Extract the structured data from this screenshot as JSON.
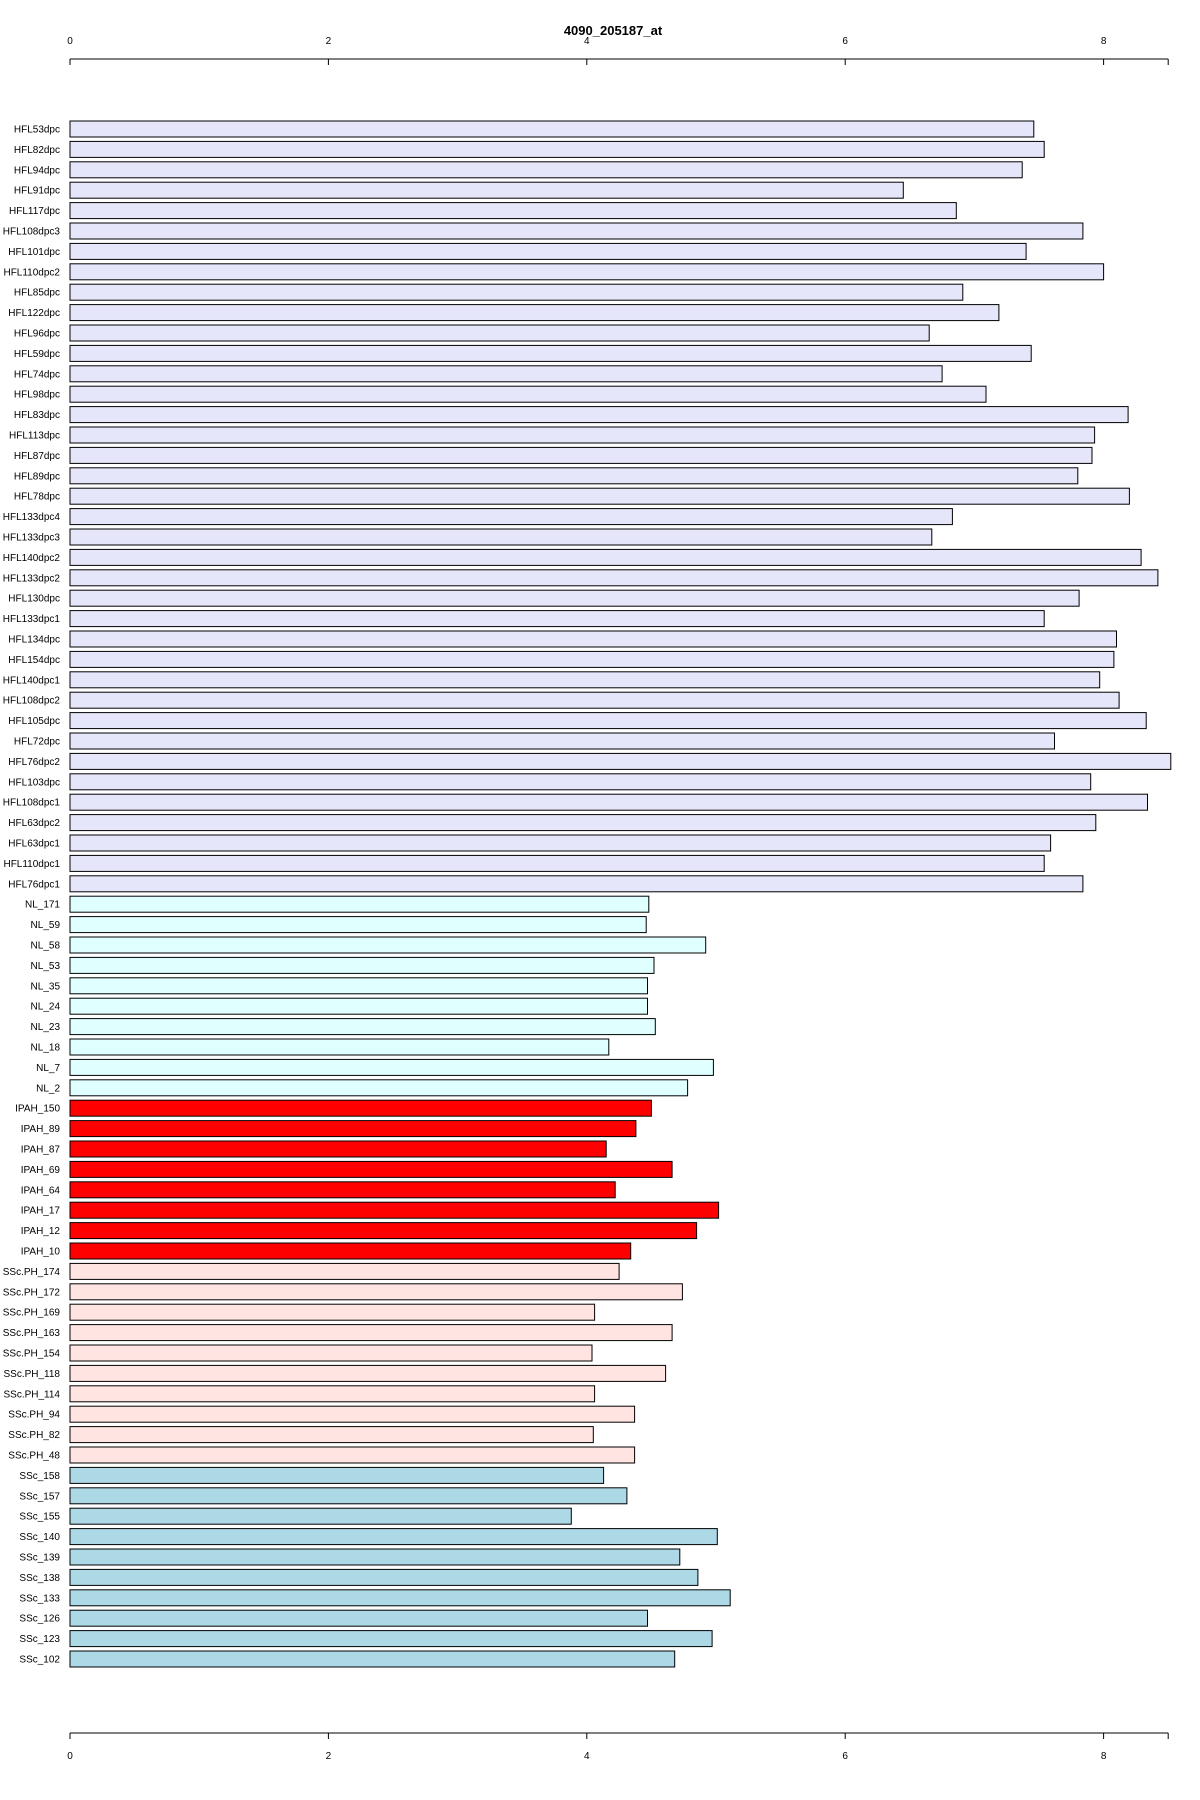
{
  "chart_data": {
    "type": "bar",
    "orientation": "horizontal",
    "title": "4090_205187_at",
    "xlabel": "",
    "ylabel": "",
    "xlim": [
      0,
      8.5
    ],
    "x_ticks": [
      0,
      2,
      4,
      6,
      8
    ],
    "axes": [
      "top",
      "bottom"
    ],
    "grid": false,
    "groups": [
      {
        "color": "#E6E6FA",
        "first": 0,
        "last": 37
      },
      {
        "color": "#E0FFFF",
        "first": 38,
        "last": 47
      },
      {
        "color": "#FF0000",
        "first": 48,
        "last": 55
      },
      {
        "color": "#FFE4E1",
        "first": 56,
        "last": 65
      },
      {
        "color": "#ADD8E6",
        "first": 66,
        "last": 75
      }
    ],
    "categories": [
      "HFL53dpc",
      "HFL82dpc",
      "HFL94dpc",
      "HFL91dpc",
      "HFL117dpc",
      "HFL108dpc3",
      "HFL101dpc",
      "HFL110dpc2",
      "HFL85dpc",
      "HFL122dpc",
      "HFL96dpc",
      "HFL59dpc",
      "HFL74dpc",
      "HFL98dpc",
      "HFL83dpc",
      "HFL113dpc",
      "HFL87dpc",
      "HFL89dpc",
      "HFL78dpc",
      "HFL133dpc4",
      "HFL133dpc3",
      "HFL140dpc2",
      "HFL133dpc2",
      "HFL130dpc",
      "HFL133dpc1",
      "HFL134dpc",
      "HFL154dpc",
      "HFL140dpc1",
      "HFL108dpc2",
      "HFL105dpc",
      "HFL72dpc",
      "HFL76dpc2",
      "HFL103dpc",
      "HFL108dpc1",
      "HFL63dpc2",
      "HFL63dpc1",
      "HFL110dpc1",
      "HFL76dpc1",
      "NL_171",
      "NL_59",
      "NL_58",
      "NL_53",
      "NL_35",
      "NL_24",
      "NL_23",
      "NL_18",
      "NL_7",
      "NL_2",
      "IPAH_150",
      "IPAH_89",
      "IPAH_87",
      "IPAH_69",
      "IPAH_64",
      "IPAH_17",
      "IPAH_12",
      "IPAH_10",
      "SSc.PH_174",
      "SSc.PH_172",
      "SSc.PH_169",
      "SSc.PH_163",
      "SSc.PH_154",
      "SSc.PH_118",
      "SSc.PH_114",
      "SSc.PH_94",
      "SSc.PH_82",
      "SSc.PH_48",
      "SSc_158",
      "SSc_157",
      "SSc_155",
      "SSc_140",
      "SSc_139",
      "SSc_138",
      "SSc_133",
      "SSc_126",
      "SSc_123",
      "SSc_102"
    ],
    "values": [
      7.46,
      7.54,
      7.37,
      6.45,
      6.86,
      7.84,
      7.4,
      8.0,
      6.91,
      7.19,
      6.65,
      7.44,
      6.75,
      7.09,
      8.19,
      7.93,
      7.91,
      7.8,
      8.2,
      6.83,
      6.67,
      8.29,
      8.42,
      7.81,
      7.54,
      8.1,
      8.08,
      7.97,
      8.12,
      8.33,
      7.62,
      8.52,
      7.9,
      8.34,
      7.94,
      7.59,
      7.54,
      7.84,
      4.48,
      4.46,
      4.92,
      4.52,
      4.47,
      4.47,
      4.53,
      4.17,
      4.98,
      4.78,
      4.5,
      4.38,
      4.15,
      4.66,
      4.22,
      5.02,
      4.85,
      4.34,
      4.25,
      4.74,
      4.06,
      4.66,
      4.04,
      4.61,
      4.06,
      4.37,
      4.05,
      4.37,
      4.13,
      4.31,
      3.88,
      5.01,
      4.72,
      4.86,
      5.11,
      4.47,
      4.97,
      4.68
    ]
  }
}
